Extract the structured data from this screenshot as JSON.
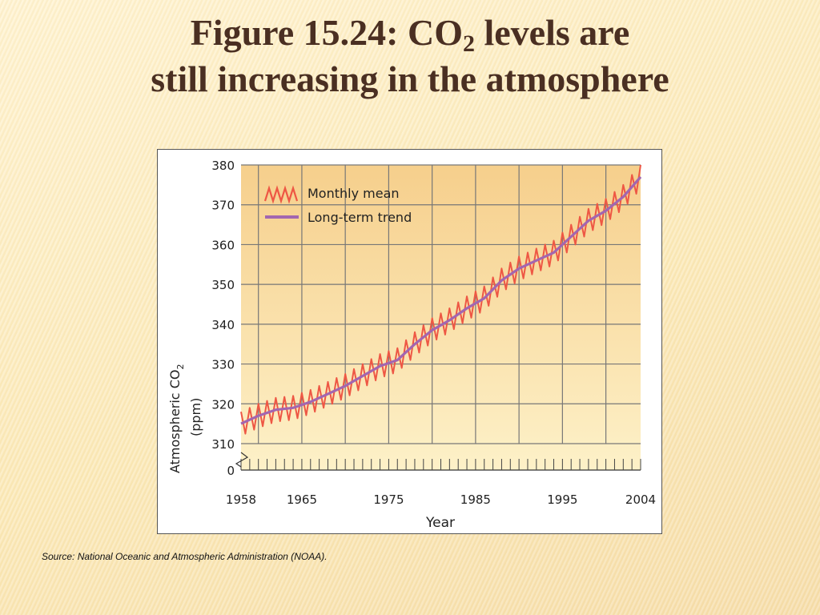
{
  "slide": {
    "title_part1": "Figure 15.24: CO",
    "title_sub": "2",
    "title_part2": " levels are",
    "title_line2": "still increasing in the atmosphere",
    "source": "Source: National Oceanic and Atmospheric Administration (NOAA)."
  },
  "colors": {
    "title": "#4a2f22",
    "plot_bg_top": "#f6cf8c",
    "plot_bg_bottom": "#fdf1c8",
    "monthly_mean": "#ee5744",
    "trend": "#a266b0",
    "grid": "#777777"
  },
  "chart_data": {
    "type": "line",
    "xlabel": "Year",
    "ylabel": "Atmospheric CO",
    "ylabel_sub": "2",
    "ylabel_unit": "(ppm)",
    "xlim": [
      1958,
      2004
    ],
    "ylim": [
      310,
      380
    ],
    "y_axis_break": true,
    "x_tick_labels": [
      "1958",
      "1965",
      "1975",
      "1985",
      "1995",
      "2004"
    ],
    "x_tick_values": [
      1958,
      1965,
      1975,
      1985,
      1995,
      2004
    ],
    "y_tick_labels": [
      "0",
      "310",
      "320",
      "330",
      "340",
      "350",
      "360",
      "370",
      "380"
    ],
    "y_tick_values": [
      310,
      320,
      330,
      340,
      350,
      360,
      370,
      380
    ],
    "legend": [
      {
        "name": "Monthly mean",
        "style": "zigzag"
      },
      {
        "name": "Long-term trend",
        "style": "line"
      }
    ],
    "legend_position": "top-left",
    "grid": true,
    "series": [
      {
        "name": "Long-term trend",
        "x": [
          1958,
          1960,
          1962,
          1964,
          1966,
          1968,
          1970,
          1972,
          1974,
          1976,
          1978,
          1980,
          1982,
          1984,
          1986,
          1988,
          1990,
          1992,
          1994,
          1996,
          1998,
          2000,
          2002,
          2004
        ],
        "y": [
          315,
          317,
          318.5,
          319,
          320.5,
          322.5,
          324.5,
          327,
          329.5,
          331,
          335,
          338.5,
          341,
          344,
          346.5,
          351,
          354,
          356,
          358,
          362,
          366,
          368.5,
          372,
          377
        ]
      },
      {
        "name": "Monthly mean",
        "seasonal_amplitude_ppm": 3
      }
    ]
  }
}
